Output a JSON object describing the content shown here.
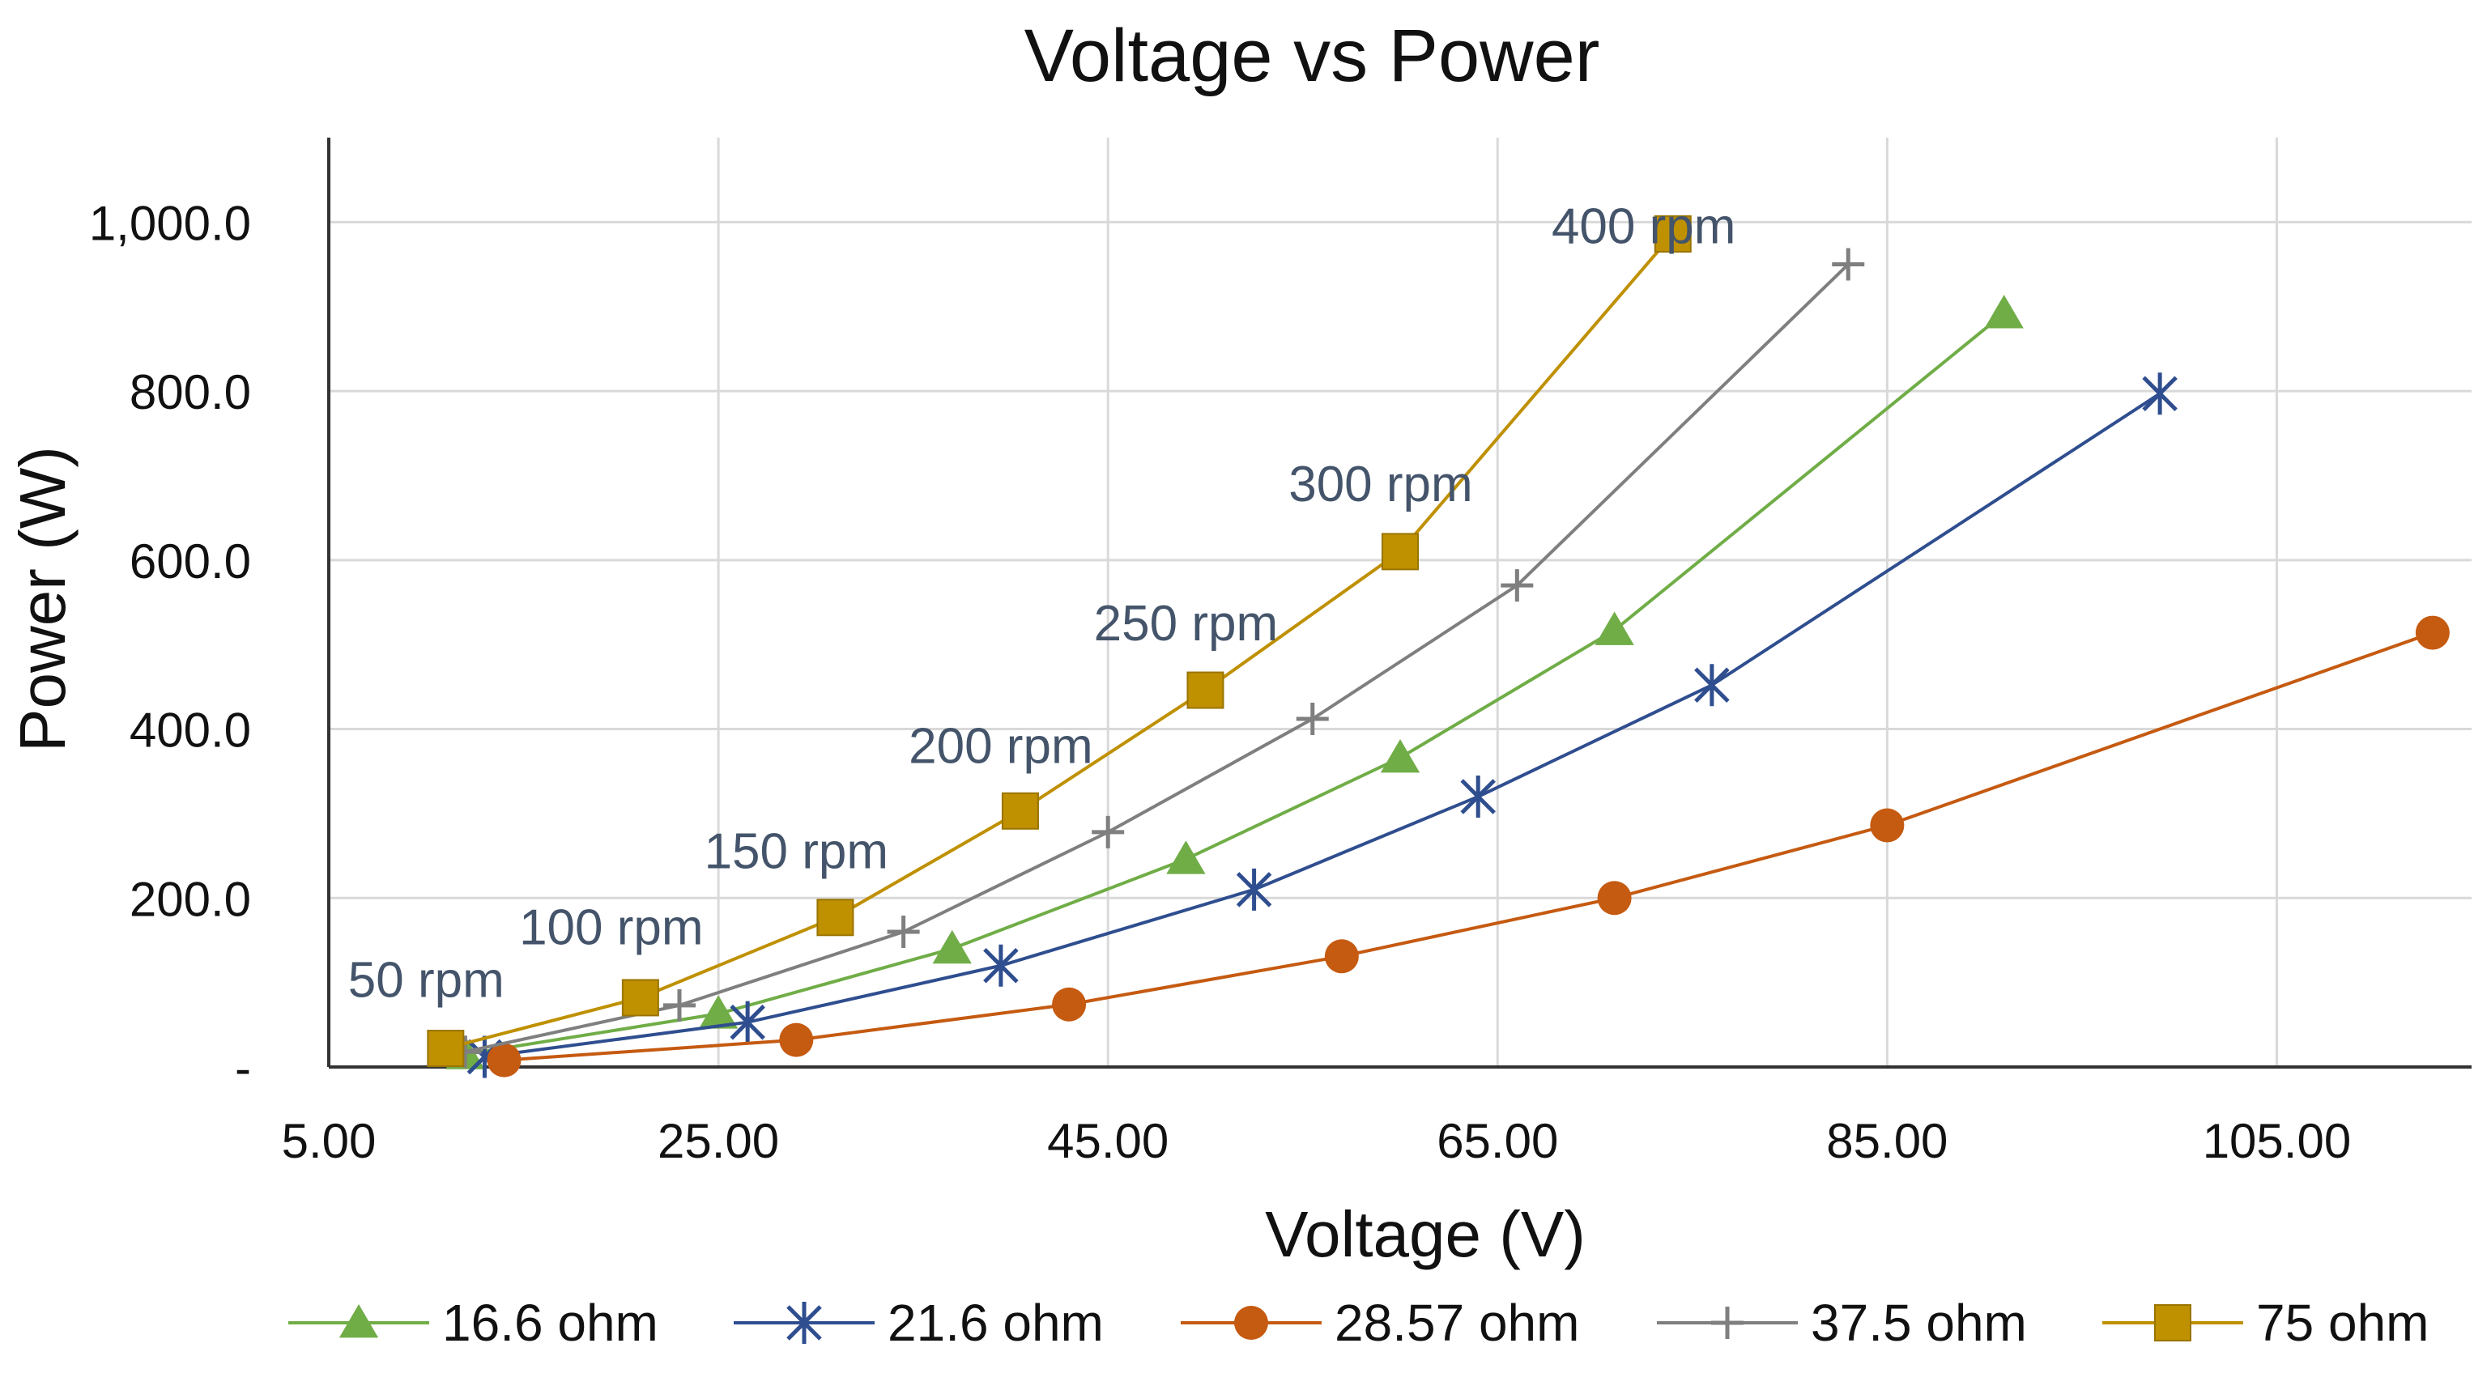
{
  "chart_data": {
    "type": "line",
    "title": "Voltage vs Power",
    "xlabel": "Voltage (V)",
    "ylabel": "Power (W)",
    "xlim": [
      5,
      115
    ],
    "ylim": [
      0,
      1100
    ],
    "x_ticks": [
      5,
      25,
      45,
      65,
      85,
      105
    ],
    "x_tick_labels": [
      "5.00",
      "25.00",
      "45.00",
      "65.00",
      "85.00",
      "105.00"
    ],
    "y_ticks": [
      0,
      200,
      400,
      600,
      800,
      1000
    ],
    "y_tick_labels": [
      "-",
      "200.0",
      "400.0",
      "600.0",
      "800.0",
      "1,000.0"
    ],
    "grid": true,
    "legend_position": "bottom",
    "series": [
      {
        "name": "16.6 ohm",
        "color": "#70ad47",
        "marker": "triangle",
        "points": [
          [
            12,
            15
          ],
          [
            25,
            63
          ],
          [
            37,
            140
          ],
          [
            49,
            246
          ],
          [
            60,
            366
          ],
          [
            71,
            517
          ],
          [
            91,
            892
          ]
        ]
      },
      {
        "name": "21.6 ohm",
        "color": "#2f4e8f",
        "marker": "star",
        "points": [
          [
            13,
            12
          ],
          [
            26.5,
            53
          ],
          [
            39.5,
            120
          ],
          [
            52.5,
            210
          ],
          [
            64,
            320
          ],
          [
            76,
            452
          ],
          [
            99,
            797
          ]
        ]
      },
      {
        "name": "28.57 ohm",
        "color": "#c55a11",
        "marker": "circle",
        "points": [
          [
            14,
            8
          ],
          [
            29,
            32
          ],
          [
            43,
            74
          ],
          [
            57,
            131
          ],
          [
            71,
            200
          ],
          [
            85,
            286
          ],
          [
            113,
            514
          ]
        ]
      },
      {
        "name": "37.5 ohm",
        "color": "#7f7f7f",
        "marker": "plus",
        "points": [
          [
            12,
            18
          ],
          [
            23,
            73
          ],
          [
            34.5,
            160
          ],
          [
            45,
            278
          ],
          [
            55.5,
            412
          ],
          [
            66,
            570
          ],
          [
            83,
            950
          ]
        ]
      },
      {
        "name": "75 ohm",
        "color": "#bf9000",
        "marker": "square",
        "points": [
          [
            11,
            22
          ],
          [
            21,
            82
          ],
          [
            31,
            177
          ],
          [
            40.5,
            303
          ],
          [
            50,
            446
          ],
          [
            60,
            610
          ],
          [
            74,
            986
          ]
        ]
      }
    ],
    "annotations": [
      {
        "text": "50 rpm",
        "x": 10,
        "y": 83
      },
      {
        "text": "100 rpm",
        "x": 19.5,
        "y": 145
      },
      {
        "text": "150 rpm",
        "x": 29,
        "y": 235
      },
      {
        "text": "200 rpm",
        "x": 39.5,
        "y": 360
      },
      {
        "text": "250 rpm",
        "x": 49,
        "y": 505
      },
      {
        "text": "300 rpm",
        "x": 59,
        "y": 670
      },
      {
        "text": "400 rpm",
        "x": 72.5,
        "y": 975
      }
    ]
  }
}
